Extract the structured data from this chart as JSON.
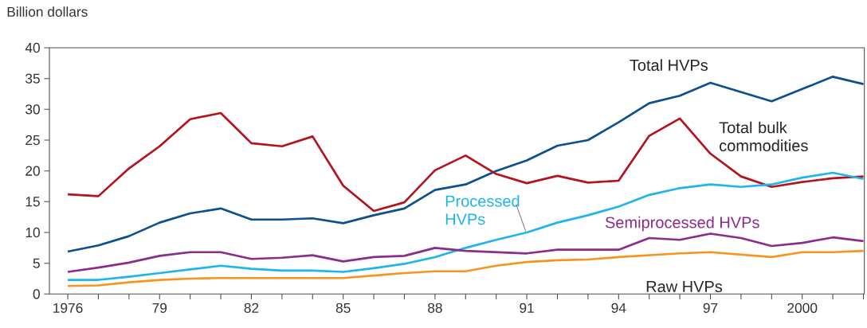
{
  "chart_data": {
    "type": "line",
    "ylabel": "Billion dollars",
    "x": [
      1976,
      1977,
      1978,
      1979,
      1980,
      1981,
      1982,
      1983,
      1984,
      1985,
      1986,
      1987,
      1988,
      1989,
      1990,
      1991,
      1992,
      1993,
      1994,
      1995,
      1996,
      1997,
      1998,
      1999,
      2000,
      2001,
      2002
    ],
    "series": [
      {
        "name": "Total HVPs",
        "color": "#0b4f8f",
        "values": [
          6.9,
          7.9,
          9.4,
          11.6,
          13.1,
          13.9,
          12.1,
          12.1,
          12.3,
          11.5,
          12.8,
          13.9,
          16.9,
          17.8,
          20.0,
          21.7,
          24.1,
          25.0,
          27.9,
          31.0,
          32.2,
          34.3,
          32.8,
          31.3,
          33.3,
          35.3,
          34.1
        ]
      },
      {
        "name": "Total bulk commodities",
        "color": "#b5121b",
        "values": [
          16.2,
          15.9,
          20.4,
          24.0,
          28.4,
          29.4,
          24.5,
          24.0,
          25.6,
          17.6,
          13.5,
          14.9,
          20.1,
          22.5,
          19.5,
          18.0,
          19.2,
          18.1,
          18.4,
          25.7,
          28.5,
          22.8,
          19.1,
          17.4,
          18.2,
          18.8,
          19.1
        ]
      },
      {
        "name": "Processed HVPs",
        "color": "#1eb4ec",
        "values": [
          2.3,
          2.3,
          2.8,
          3.4,
          4.0,
          4.6,
          4.1,
          3.8,
          3.8,
          3.6,
          4.2,
          4.9,
          6.0,
          7.5,
          8.8,
          10.0,
          11.6,
          12.8,
          14.2,
          16.1,
          17.2,
          17.8,
          17.4,
          17.8,
          18.9,
          19.7,
          18.7
        ]
      },
      {
        "name": "Semiprocessed HVPs",
        "color": "#8b2b8b",
        "values": [
          3.6,
          4.3,
          5.1,
          6.2,
          6.8,
          6.8,
          5.7,
          5.9,
          6.3,
          5.3,
          6.0,
          6.2,
          7.5,
          7.0,
          6.8,
          6.6,
          7.2,
          7.2,
          7.2,
          9.1,
          8.8,
          9.8,
          9.1,
          7.8,
          8.3,
          9.2,
          8.6
        ]
      },
      {
        "name": "Raw HVPs",
        "color": "#f7941d",
        "values": [
          1.3,
          1.4,
          1.9,
          2.3,
          2.5,
          2.6,
          2.6,
          2.6,
          2.6,
          2.6,
          3.0,
          3.4,
          3.7,
          3.7,
          4.6,
          5.2,
          5.5,
          5.6,
          6.0,
          6.3,
          6.6,
          6.8,
          6.4,
          6.0,
          6.8,
          6.8,
          7.0
        ]
      }
    ],
    "xlim": [
      1975.4,
      2002.03
    ],
    "ylim": [
      0,
      40
    ],
    "xticks": [
      {
        "value": 1976,
        "label": "1976"
      },
      {
        "value": 1977,
        "label": null
      },
      {
        "value": 1978,
        "label": null
      },
      {
        "value": 1979,
        "label": "79"
      },
      {
        "value": 1980,
        "label": null
      },
      {
        "value": 1981,
        "label": null
      },
      {
        "value": 1982,
        "label": "82"
      },
      {
        "value": 1983,
        "label": null
      },
      {
        "value": 1984,
        "label": null
      },
      {
        "value": 1985,
        "label": "85"
      },
      {
        "value": 1986,
        "label": null
      },
      {
        "value": 1987,
        "label": null
      },
      {
        "value": 1988,
        "label": "88"
      },
      {
        "value": 1989,
        "label": null
      },
      {
        "value": 1990,
        "label": null
      },
      {
        "value": 1991,
        "label": "91"
      },
      {
        "value": 1992,
        "label": null
      },
      {
        "value": 1993,
        "label": null
      },
      {
        "value": 1994,
        "label": "94"
      },
      {
        "value": 1995,
        "label": null
      },
      {
        "value": 1996,
        "label": null
      },
      {
        "value": 1997,
        "label": "97"
      },
      {
        "value": 1998,
        "label": null
      },
      {
        "value": 1999,
        "label": null
      },
      {
        "value": 2000,
        "label": "2000"
      },
      {
        "value": 2001,
        "label": null
      },
      {
        "value": 2002,
        "label": null
      }
    ],
    "yticks": [
      0,
      5,
      10,
      15,
      20,
      25,
      30,
      35,
      40
    ],
    "grid": false,
    "marker": "none",
    "line_style": "solid"
  }
}
